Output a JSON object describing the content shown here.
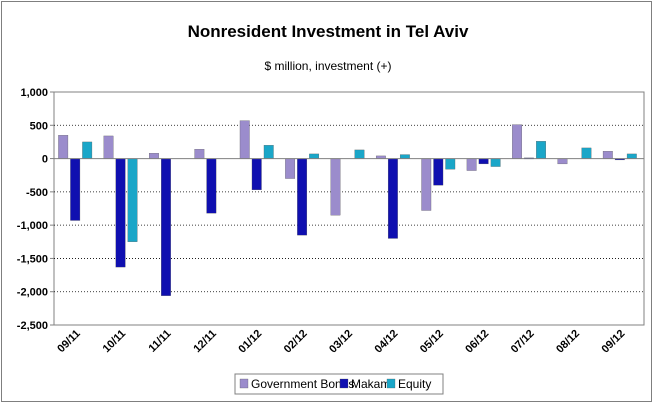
{
  "chart_data": {
    "type": "bar",
    "title": "Nonresident Investment in Tel Aviv",
    "subtitle": "$ million, investment (+)",
    "xlabel": "",
    "ylabel": "",
    "categories": [
      "09/11",
      "10/11",
      "11/11",
      "12/11",
      "01/12",
      "02/12",
      "03/12",
      "04/12",
      "05/12",
      "06/12",
      "07/12",
      "08/12",
      "09/12"
    ],
    "ylim": [
      -2500,
      1000
    ],
    "yticks": [
      1000,
      500,
      0,
      -500,
      -1000,
      -1500,
      -2000,
      -2500
    ],
    "ytick_labels": [
      "1,000",
      "500",
      "0",
      "-500",
      "-1,000",
      "-1,500",
      "-2,000",
      "-2,500"
    ],
    "grid": "horizontal dotted",
    "legend_position": "bottom",
    "series": [
      {
        "name": "Government Bonds",
        "color": "#9b8ccc",
        "values": [
          350,
          340,
          80,
          140,
          570,
          -300,
          -850,
          40,
          -780,
          -180,
          510,
          -80,
          110
        ]
      },
      {
        "name": "Makam",
        "color": "#0f0fb0",
        "values": [
          -930,
          -1630,
          -2060,
          -820,
          -470,
          -1150,
          0,
          -1200,
          -400,
          -80,
          10,
          0,
          -20
        ]
      },
      {
        "name": "Equity",
        "color": "#1aa6c8",
        "values": [
          250,
          -1250,
          0,
          0,
          200,
          70,
          130,
          60,
          -160,
          -120,
          260,
          160,
          70
        ]
      }
    ]
  }
}
